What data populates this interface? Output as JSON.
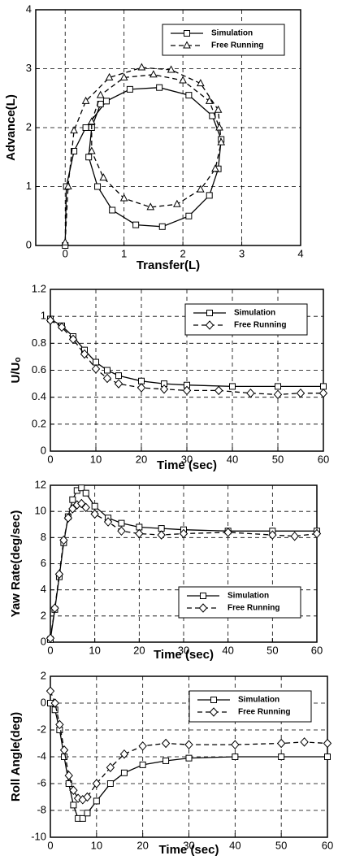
{
  "chart_data": [
    {
      "type": "line",
      "x_label": "Transfer(L)",
      "y_label": "Advance(L)",
      "xlim": [
        -0.5,
        4
      ],
      "xticks": [
        0,
        1,
        2,
        3,
        4
      ],
      "ylim": [
        0,
        4
      ],
      "yticks": [
        0,
        1,
        2,
        3,
        4
      ],
      "grid": true,
      "legend": "upper right",
      "series": [
        {
          "name": "Simulation",
          "color": "#000000",
          "dash": "solid",
          "marker": "square",
          "x": [
            0,
            0.02,
            0.15,
            0.35,
            0.7,
            1.1,
            1.6,
            2.1,
            2.5,
            2.65,
            2.6,
            2.45,
            2.1,
            1.65,
            1.2,
            0.8,
            0.55,
            0.4,
            0.45,
            0.6
          ],
          "y": [
            0,
            1.0,
            1.6,
            2.0,
            2.45,
            2.65,
            2.68,
            2.55,
            2.2,
            1.8,
            1.3,
            0.85,
            0.5,
            0.32,
            0.35,
            0.6,
            1.0,
            1.5,
            2.0,
            2.4
          ]
        },
        {
          "name": "Free Running",
          "color": "#000000",
          "dash": "dashed",
          "marker": "triangle",
          "x": [
            0,
            0.05,
            0.15,
            0.35,
            0.75,
            1.3,
            1.8,
            2.3,
            2.6,
            2.65,
            2.55,
            2.3,
            1.9,
            1.45,
            1.0,
            0.65,
            0.45,
            0.45,
            0.6,
            1.0,
            1.5,
            2.0,
            2.45,
            2.62
          ],
          "y": [
            0.05,
            1.0,
            1.95,
            2.45,
            2.85,
            3.02,
            2.98,
            2.75,
            2.3,
            1.75,
            1.3,
            0.95,
            0.7,
            0.65,
            0.8,
            1.15,
            1.6,
            2.1,
            2.55,
            2.85,
            2.9,
            2.8,
            2.45,
            2.0
          ]
        }
      ]
    },
    {
      "type": "line",
      "x_label": "Time (sec)",
      "y_label": "U/Uₒ",
      "xlim": [
        0,
        60
      ],
      "xticks": [
        0,
        10,
        20,
        30,
        40,
        50,
        60
      ],
      "ylim": [
        0,
        1.2
      ],
      "yticks": [
        0,
        0.2,
        0.4,
        0.6,
        0.8,
        1,
        1.2
      ],
      "grid": true,
      "legend": "upper right",
      "series": [
        {
          "name": "Simulation",
          "color": "#000000",
          "dash": "solid",
          "marker": "square",
          "x": [
            0,
            2.5,
            5,
            7.5,
            10,
            12.5,
            15,
            20,
            25,
            30,
            40,
            50,
            60
          ],
          "y": [
            0.98,
            0.93,
            0.85,
            0.75,
            0.66,
            0.6,
            0.56,
            0.52,
            0.5,
            0.49,
            0.48,
            0.48,
            0.48
          ]
        },
        {
          "name": "Free Running",
          "color": "#000000",
          "dash": "dashed",
          "marker": "diamond",
          "x": [
            0,
            2.5,
            5,
            7.5,
            10,
            12.5,
            15,
            20,
            25,
            30,
            37,
            44,
            50,
            55,
            60
          ],
          "y": [
            0.97,
            0.92,
            0.83,
            0.72,
            0.61,
            0.54,
            0.5,
            0.47,
            0.46,
            0.45,
            0.45,
            0.43,
            0.42,
            0.43,
            0.43
          ]
        }
      ]
    },
    {
      "type": "line",
      "x_label": "Time (sec)",
      "y_label": "Yaw Rate(deg/sec)",
      "xlim": [
        0,
        60
      ],
      "xticks": [
        0,
        10,
        20,
        30,
        40,
        50,
        60
      ],
      "ylim": [
        0,
        12
      ],
      "yticks": [
        0,
        2,
        4,
        6,
        8,
        10,
        12
      ],
      "grid": true,
      "legend": "lower right",
      "series": [
        {
          "name": "Simulation",
          "color": "#000000",
          "dash": "solid",
          "marker": "square",
          "x": [
            0,
            1,
            2,
            3,
            4,
            5,
            6,
            7,
            8,
            10,
            13,
            16,
            20,
            25,
            30,
            40,
            50,
            60
          ],
          "y": [
            0.2,
            2.5,
            5,
            7.6,
            9.6,
            10.9,
            11.6,
            11.8,
            11.4,
            10.4,
            9.5,
            9.1,
            8.8,
            8.7,
            8.6,
            8.5,
            8.5,
            8.5
          ]
        },
        {
          "name": "Free Running",
          "color": "#000000",
          "dash": "dashed",
          "marker": "diamond",
          "x": [
            0,
            1,
            2,
            3,
            4,
            5,
            6,
            7,
            8,
            10,
            13,
            16,
            20,
            25,
            30,
            40,
            50,
            55,
            60
          ],
          "y": [
            0.3,
            2.6,
            5.2,
            7.8,
            9.5,
            10.2,
            10.5,
            10.6,
            10.3,
            9.8,
            9.2,
            8.5,
            8.3,
            8.2,
            8.3,
            8.4,
            8.2,
            8.1,
            8.3
          ]
        }
      ]
    },
    {
      "type": "line",
      "x_label": "Time (sec)",
      "y_label": "Roll Angle(deg)",
      "xlim": [
        0,
        60
      ],
      "xticks": [
        0,
        10,
        20,
        30,
        40,
        50,
        60
      ],
      "ylim": [
        -10,
        2
      ],
      "yticks": [
        -10,
        -8,
        -6,
        -4,
        -2,
        0,
        2
      ],
      "grid": true,
      "legend": "upper right",
      "series": [
        {
          "name": "Simulation",
          "color": "#000000",
          "dash": "solid",
          "marker": "square",
          "x": [
            0,
            1,
            2,
            3,
            4,
            5,
            6,
            7,
            8,
            10,
            13,
            16,
            20,
            25,
            30,
            40,
            50,
            60
          ],
          "y": [
            0,
            -0.5,
            -2,
            -4,
            -6,
            -7.6,
            -8.6,
            -8.6,
            -8.2,
            -7.3,
            -6,
            -5.2,
            -4.6,
            -4.3,
            -4.1,
            -4,
            -4,
            -4
          ]
        },
        {
          "name": "Free Running",
          "color": "#000000",
          "dash": "dashed",
          "marker": "diamond",
          "x": [
            0,
            1,
            2,
            3,
            4,
            5,
            6,
            7,
            8,
            10,
            13,
            16,
            20,
            25,
            30,
            40,
            50,
            55,
            60
          ],
          "y": [
            0.9,
            0,
            -1.6,
            -3.5,
            -5.4,
            -6.5,
            -7.1,
            -7.2,
            -7,
            -6,
            -4.8,
            -3.8,
            -3.2,
            -3,
            -3.1,
            -3.1,
            -3,
            -2.9,
            -3
          ]
        }
      ]
    }
  ]
}
